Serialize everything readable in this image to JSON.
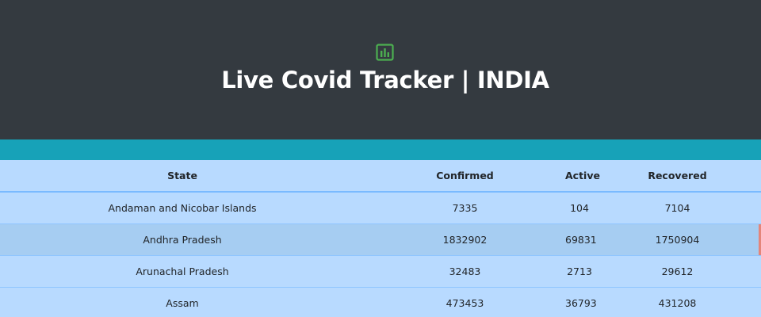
{
  "header": {
    "icon": "bar-chart-icon",
    "icon_color": "#4caf50",
    "title": "Live Covid Tracker | INDIA"
  },
  "colors": {
    "header_bg": "#343a40",
    "accent_bar": "#17a2b8",
    "table_bg": "#b8daff",
    "hover_row_bg": "#a6cdf2",
    "hover_marker": "#e4857a"
  },
  "table": {
    "columns": [
      "State",
      "Confirmed",
      "Active",
      "Recovered"
    ],
    "rows": [
      {
        "state": "Andaman and Nicobar Islands",
        "confirmed": "7335",
        "active": "104",
        "recovered": "7104"
      },
      {
        "state": "Andhra Pradesh",
        "confirmed": "1832902",
        "active": "69831",
        "recovered": "1750904"
      },
      {
        "state": "Arunachal Pradesh",
        "confirmed": "32483",
        "active": "2713",
        "recovered": "29612"
      },
      {
        "state": "Assam",
        "confirmed": "473453",
        "active": "36793",
        "recovered": "431208"
      }
    ]
  }
}
